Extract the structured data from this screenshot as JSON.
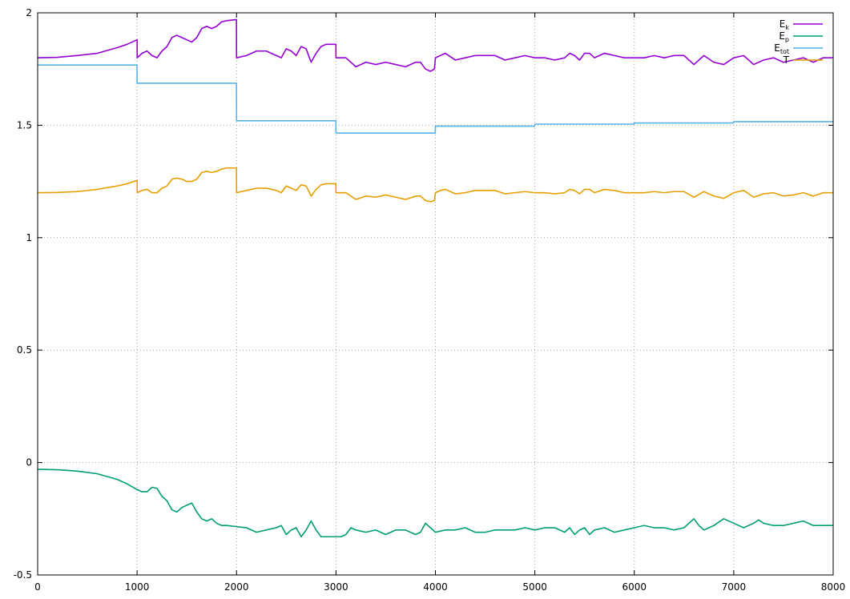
{
  "chart_data": {
    "type": "line",
    "title": "",
    "xlabel": "",
    "ylabel": "",
    "xlim": [
      0,
      8000
    ],
    "ylim": [
      -0.5,
      2
    ],
    "x_ticks": [
      0,
      1000,
      2000,
      3000,
      4000,
      5000,
      6000,
      7000,
      8000
    ],
    "y_ticks": [
      -0.5,
      0,
      0.5,
      1,
      1.5,
      2
    ],
    "x_tick_labels": [
      "0",
      "1000",
      "2000",
      "3000",
      "4000",
      "5000",
      "6000",
      "7000",
      "8000"
    ],
    "y_tick_labels": [
      "-0.5",
      "0",
      "0.5",
      "1",
      "1.5",
      "2"
    ],
    "grid": true,
    "legend_position": "top-right",
    "series": [
      {
        "name": "Ek",
        "label_main": "E",
        "label_sub": "k",
        "color": "#9400d3",
        "x": [
          0,
          200,
          400,
          600,
          800,
          900,
          1000,
          1001,
          1050,
          1100,
          1150,
          1200,
          1250,
          1300,
          1350,
          1400,
          1450,
          1500,
          1550,
          1600,
          1650,
          1700,
          1750,
          1800,
          1850,
          1900,
          1999,
          2000,
          2100,
          2200,
          2300,
          2400,
          2450,
          2500,
          2550,
          2600,
          2650,
          2700,
          2750,
          2800,
          2850,
          2900,
          2999,
          3000,
          3100,
          3200,
          3300,
          3400,
          3500,
          3600,
          3700,
          3800,
          3850,
          3900,
          3950,
          3990,
          4000,
          4050,
          4100,
          4200,
          4300,
          4400,
          4500,
          4600,
          4700,
          4800,
          4900,
          5000,
          5100,
          5200,
          5300,
          5350,
          5400,
          5450,
          5500,
          5550,
          5600,
          5700,
          5800,
          5900,
          6000,
          6100,
          6200,
          6300,
          6400,
          6500,
          6600,
          6700,
          6800,
          6900,
          7000,
          7100,
          7200,
          7300,
          7400,
          7500,
          7600,
          7700,
          7800,
          7900,
          8000
        ],
        "y": [
          1.8,
          1.802,
          1.81,
          1.82,
          1.845,
          1.86,
          1.88,
          1.8,
          1.82,
          1.83,
          1.81,
          1.8,
          1.83,
          1.85,
          1.89,
          1.9,
          1.89,
          1.88,
          1.87,
          1.89,
          1.93,
          1.94,
          1.93,
          1.94,
          1.96,
          1.965,
          1.97,
          1.8,
          1.81,
          1.83,
          1.83,
          1.81,
          1.8,
          1.84,
          1.83,
          1.81,
          1.85,
          1.84,
          1.78,
          1.82,
          1.85,
          1.86,
          1.86,
          1.8,
          1.8,
          1.76,
          1.78,
          1.77,
          1.78,
          1.77,
          1.76,
          1.78,
          1.78,
          1.75,
          1.74,
          1.75,
          1.8,
          1.81,
          1.82,
          1.79,
          1.8,
          1.81,
          1.81,
          1.81,
          1.79,
          1.8,
          1.81,
          1.8,
          1.8,
          1.79,
          1.8,
          1.82,
          1.81,
          1.79,
          1.82,
          1.82,
          1.8,
          1.82,
          1.81,
          1.8,
          1.8,
          1.8,
          1.81,
          1.8,
          1.81,
          1.81,
          1.77,
          1.81,
          1.78,
          1.77,
          1.8,
          1.81,
          1.77,
          1.79,
          1.8,
          1.78,
          1.79,
          1.8,
          1.78,
          1.8,
          1.8
        ]
      },
      {
        "name": "Ep",
        "label_main": "E",
        "label_sub": "p",
        "color": "#009e73",
        "x": [
          0,
          200,
          400,
          600,
          800,
          900,
          1000,
          1050,
          1100,
          1150,
          1200,
          1250,
          1300,
          1350,
          1400,
          1450,
          1500,
          1550,
          1600,
          1650,
          1700,
          1750,
          1800,
          1850,
          1900,
          2000,
          2100,
          2200,
          2300,
          2400,
          2450,
          2500,
          2550,
          2600,
          2650,
          2700,
          2750,
          2800,
          2850,
          2900,
          3000,
          3050,
          3100,
          3150,
          3200,
          3300,
          3400,
          3500,
          3600,
          3700,
          3800,
          3850,
          3900,
          3950,
          4000,
          4100,
          4200,
          4300,
          4400,
          4500,
          4600,
          4700,
          4800,
          4900,
          5000,
          5100,
          5200,
          5300,
          5350,
          5400,
          5450,
          5500,
          5550,
          5600,
          5700,
          5800,
          5900,
          6000,
          6100,
          6200,
          6300,
          6400,
          6500,
          6600,
          6650,
          6700,
          6800,
          6900,
          7000,
          7100,
          7200,
          7250,
          7300,
          7400,
          7500,
          7600,
          7700,
          7800,
          7900,
          8000
        ],
        "y": [
          -0.03,
          -0.032,
          -0.038,
          -0.05,
          -0.075,
          -0.095,
          -0.12,
          -0.13,
          -0.13,
          -0.11,
          -0.115,
          -0.15,
          -0.17,
          -0.21,
          -0.22,
          -0.2,
          -0.19,
          -0.18,
          -0.22,
          -0.25,
          -0.26,
          -0.25,
          -0.27,
          -0.28,
          -0.28,
          -0.285,
          -0.29,
          -0.31,
          -0.3,
          -0.29,
          -0.28,
          -0.32,
          -0.3,
          -0.29,
          -0.33,
          -0.3,
          -0.26,
          -0.3,
          -0.33,
          -0.33,
          -0.33,
          -0.33,
          -0.32,
          -0.29,
          -0.3,
          -0.31,
          -0.3,
          -0.32,
          -0.3,
          -0.3,
          -0.32,
          -0.31,
          -0.27,
          -0.29,
          -0.31,
          -0.3,
          -0.3,
          -0.29,
          -0.31,
          -0.31,
          -0.3,
          -0.3,
          -0.3,
          -0.29,
          -0.3,
          -0.29,
          -0.29,
          -0.31,
          -0.29,
          -0.32,
          -0.3,
          -0.29,
          -0.32,
          -0.3,
          -0.29,
          -0.31,
          -0.3,
          -0.29,
          -0.28,
          -0.29,
          -0.29,
          -0.3,
          -0.29,
          -0.25,
          -0.28,
          -0.3,
          -0.28,
          -0.25,
          -0.27,
          -0.29,
          -0.27,
          -0.255,
          -0.27,
          -0.28,
          -0.28,
          -0.27,
          -0.26,
          -0.28,
          -0.28,
          -0.28
        ]
      },
      {
        "name": "Etot",
        "label_main": "E",
        "label_sub": "tot",
        "color": "#56b4e9",
        "x": [
          0,
          999,
          1000,
          1999,
          2000,
          2999,
          3000,
          3999,
          4000,
          4999,
          5000,
          5999,
          6000,
          6999,
          7000,
          8000
        ],
        "y": [
          1.768,
          1.768,
          1.687,
          1.687,
          1.52,
          1.52,
          1.465,
          1.465,
          1.496,
          1.496,
          1.505,
          1.505,
          1.51,
          1.51,
          1.516,
          1.516
        ]
      },
      {
        "name": "T",
        "label_main": "T",
        "label_sub": "",
        "color": "#e69f00",
        "x": [
          0,
          200,
          400,
          600,
          800,
          900,
          1000,
          1001,
          1050,
          1100,
          1150,
          1200,
          1250,
          1300,
          1350,
          1400,
          1450,
          1500,
          1550,
          1600,
          1650,
          1700,
          1750,
          1800,
          1850,
          1900,
          1999,
          2000,
          2100,
          2200,
          2300,
          2400,
          2450,
          2500,
          2550,
          2600,
          2650,
          2700,
          2750,
          2800,
          2850,
          2900,
          2999,
          3000,
          3100,
          3200,
          3300,
          3400,
          3500,
          3600,
          3700,
          3800,
          3850,
          3900,
          3950,
          3990,
          4000,
          4050,
          4100,
          4200,
          4300,
          4400,
          4500,
          4600,
          4700,
          4800,
          4900,
          5000,
          5100,
          5200,
          5300,
          5350,
          5400,
          5450,
          5500,
          5550,
          5600,
          5700,
          5800,
          5900,
          6000,
          6100,
          6200,
          6300,
          6400,
          6500,
          6600,
          6700,
          6800,
          6900,
          7000,
          7100,
          7200,
          7300,
          7400,
          7500,
          7600,
          7700,
          7800,
          7900,
          8000
        ],
        "y": [
          1.2,
          1.201,
          1.205,
          1.215,
          1.23,
          1.24,
          1.255,
          1.2,
          1.21,
          1.215,
          1.2,
          1.2,
          1.22,
          1.23,
          1.26,
          1.265,
          1.26,
          1.25,
          1.25,
          1.26,
          1.29,
          1.295,
          1.29,
          1.295,
          1.305,
          1.31,
          1.31,
          1.2,
          1.21,
          1.22,
          1.22,
          1.21,
          1.2,
          1.23,
          1.22,
          1.21,
          1.235,
          1.23,
          1.185,
          1.215,
          1.235,
          1.24,
          1.24,
          1.2,
          1.2,
          1.17,
          1.185,
          1.18,
          1.19,
          1.18,
          1.17,
          1.185,
          1.185,
          1.165,
          1.16,
          1.165,
          1.2,
          1.21,
          1.215,
          1.195,
          1.2,
          1.21,
          1.21,
          1.21,
          1.195,
          1.2,
          1.205,
          1.2,
          1.2,
          1.195,
          1.2,
          1.215,
          1.21,
          1.195,
          1.215,
          1.215,
          1.2,
          1.215,
          1.21,
          1.2,
          1.2,
          1.2,
          1.205,
          1.2,
          1.205,
          1.205,
          1.18,
          1.205,
          1.185,
          1.175,
          1.2,
          1.21,
          1.18,
          1.195,
          1.2,
          1.185,
          1.19,
          1.2,
          1.185,
          1.2,
          1.2
        ]
      }
    ]
  }
}
